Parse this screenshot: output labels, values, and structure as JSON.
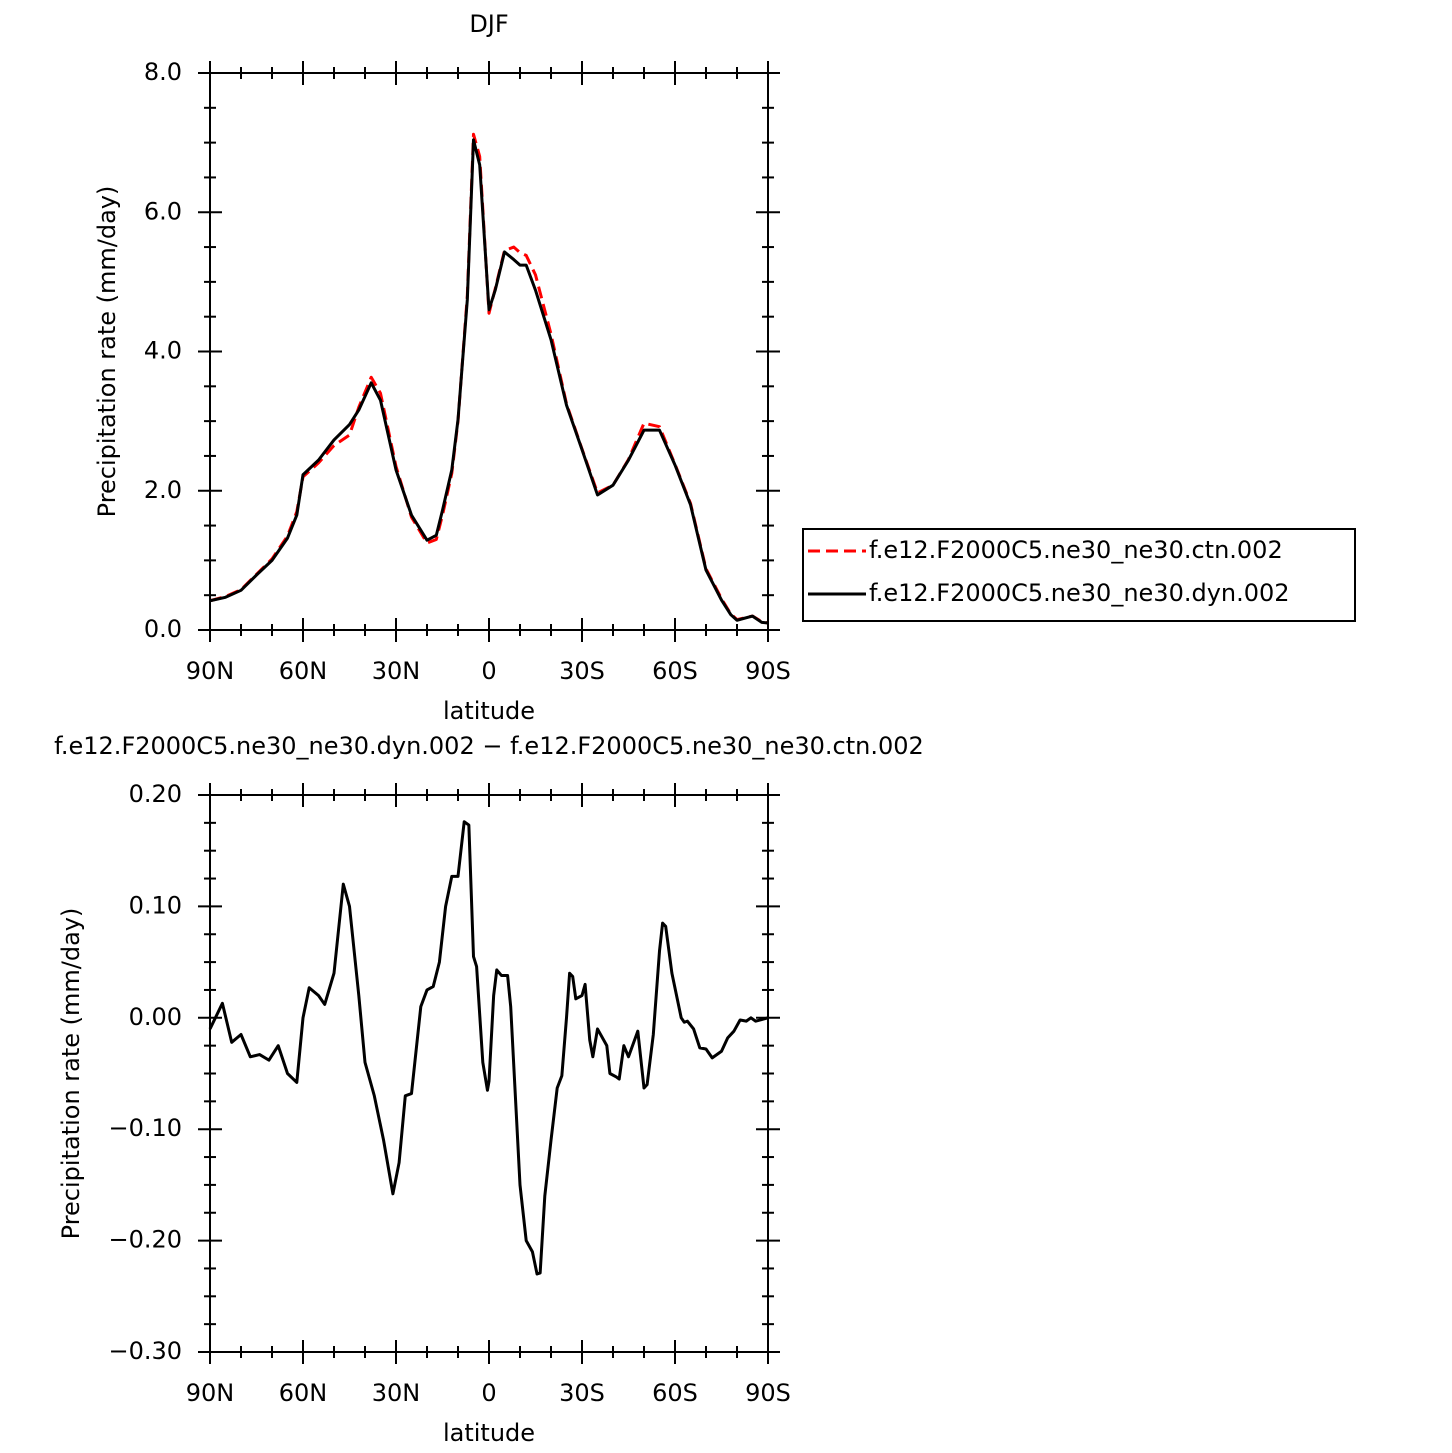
{
  "chart_data": [
    {
      "type": "line",
      "title": "DJF",
      "xlabel": "latitude",
      "ylabel": "Precipitation rate (mm/day)",
      "x": [
        90,
        85,
        80,
        75,
        70,
        65,
        62,
        60,
        55,
        50,
        45,
        42,
        38,
        35,
        30,
        25,
        20,
        17,
        15,
        12,
        10,
        7,
        5,
        3,
        0,
        -2,
        -5,
        -8,
        -10,
        -12,
        -15,
        -20,
        -25,
        -30,
        -35,
        -40,
        -45,
        -50,
        -55,
        -60,
        -65,
        -70,
        -75,
        -78,
        -80,
        -85,
        -88,
        -90
      ],
      "series": [
        {
          "name": "f.e12.F2000C5.ne30_ne30.ctn.002",
          "color": "#ff0000",
          "dashed": true,
          "values": [
            0.42,
            0.48,
            0.58,
            0.8,
            1.02,
            1.35,
            1.7,
            2.2,
            2.4,
            2.65,
            2.8,
            3.2,
            3.63,
            3.4,
            2.35,
            1.62,
            1.25,
            1.3,
            1.65,
            2.25,
            3.0,
            4.8,
            7.12,
            6.8,
            4.55,
            4.9,
            5.45,
            5.5,
            5.42,
            5.38,
            5.1,
            4.25,
            3.25,
            2.6,
            1.97,
            2.08,
            2.45,
            2.97,
            2.92,
            2.38,
            1.82,
            0.88,
            0.45,
            0.23,
            0.15,
            0.2,
            0.12,
            0.1
          ]
        },
        {
          "name": "f.e12.F2000C5.ne30_ne30.dyn.002",
          "color": "#000000",
          "dashed": false,
          "values": [
            0.42,
            0.47,
            0.57,
            0.79,
            1.0,
            1.32,
            1.65,
            2.23,
            2.44,
            2.73,
            2.95,
            3.16,
            3.55,
            3.3,
            2.3,
            1.65,
            1.29,
            1.36,
            1.72,
            2.3,
            3.02,
            4.74,
            7.04,
            6.68,
            4.6,
            4.88,
            5.43,
            5.32,
            5.24,
            5.24,
            4.88,
            4.17,
            3.23,
            2.59,
            1.94,
            2.08,
            2.44,
            2.87,
            2.87,
            2.37,
            1.8,
            0.86,
            0.43,
            0.22,
            0.14,
            0.2,
            0.11,
            0.1
          ]
        }
      ],
      "xlim": [
        90,
        -90
      ],
      "xticks": [
        {
          "value": 90,
          "label": "90N"
        },
        {
          "value": 60,
          "label": "60N"
        },
        {
          "value": 30,
          "label": "30N"
        },
        0,
        {
          "value": -30,
          "label": "30S"
        },
        {
          "value": -60,
          "label": "60S"
        },
        {
          "value": -90,
          "label": "90S"
        }
      ],
      "ylim": [
        0,
        8
      ],
      "yticks": [
        {
          "value": 0,
          "label": "0.0"
        },
        {
          "value": 2,
          "label": "2.0"
        },
        {
          "value": 4,
          "label": "4.0"
        },
        {
          "value": 6,
          "label": "6.0"
        },
        {
          "value": 8,
          "label": "8.0"
        }
      ],
      "legend": "right"
    },
    {
      "type": "line",
      "title": "f.e12.F2000C5.ne30_ne30.dyn.002 − f.e12.F2000C5.ne30_ne30.ctn.002",
      "xlabel": "latitude",
      "ylabel": "Precipitation rate (mm/day)",
      "x": [
        90,
        86,
        83,
        80,
        77,
        74,
        71,
        68,
        65,
        62,
        60,
        58,
        55,
        53,
        50,
        47,
        45,
        42,
        40,
        37,
        34,
        31,
        29,
        27,
        25,
        22,
        20,
        18,
        16,
        14,
        12,
        10,
        8,
        6.5,
        5,
        4,
        2,
        0.5,
        0,
        -1.5,
        -2.5,
        -4,
        -6,
        -7,
        -10,
        -12,
        -14,
        -15.5,
        -16.5,
        -18,
        -20,
        -22,
        -23.5,
        -25,
        -26,
        -27,
        -28,
        -30,
        -31,
        -32.5,
        -33.5,
        -35,
        -38,
        -39,
        -41,
        -42,
        -43.5,
        -45,
        -48,
        -50,
        -51,
        -53,
        -55,
        -56,
        -57,
        -59,
        -62,
        -63,
        -64,
        -66,
        -68,
        -70,
        -72,
        -75,
        -77,
        -79,
        -81,
        -83,
        -84.5,
        -86,
        -90
      ],
      "series": [
        {
          "color": "#000000",
          "dashed": false,
          "values": [
            -0.01,
            0.013,
            -0.022,
            -0.015,
            -0.035,
            -0.033,
            -0.038,
            -0.025,
            -0.05,
            -0.058,
            0.0,
            0.027,
            0.02,
            0.012,
            0.04,
            0.12,
            0.1,
            0.02,
            -0.04,
            -0.07,
            -0.11,
            -0.158,
            -0.13,
            -0.07,
            -0.068,
            0.01,
            0.025,
            0.028,
            0.05,
            0.1,
            0.127,
            0.127,
            0.176,
            0.173,
            0.055,
            0.046,
            -0.04,
            -0.065,
            -0.057,
            0.02,
            0.043,
            0.038,
            0.038,
            0.01,
            -0.15,
            -0.2,
            -0.21,
            -0.23,
            -0.229,
            -0.16,
            -0.11,
            -0.063,
            -0.052,
            0.0,
            0.04,
            0.037,
            0.017,
            0.02,
            0.03,
            -0.02,
            -0.035,
            -0.01,
            -0.025,
            -0.05,
            -0.053,
            -0.055,
            -0.025,
            -0.035,
            -0.012,
            -0.063,
            -0.06,
            -0.015,
            0.06,
            0.085,
            0.082,
            0.04,
            0.0,
            -0.004,
            -0.003,
            -0.01,
            -0.027,
            -0.028,
            -0.036,
            -0.03,
            -0.018,
            -0.012,
            -0.002,
            -0.003,
            0.0,
            -0.003,
            0.0
          ]
        }
      ],
      "xlim": [
        90,
        -90
      ],
      "xticks": [
        {
          "value": 90,
          "label": "90N"
        },
        {
          "value": 60,
          "label": "60N"
        },
        {
          "value": 30,
          "label": "30N"
        },
        0,
        {
          "value": -30,
          "label": "30S"
        },
        {
          "value": -60,
          "label": "60S"
        },
        {
          "value": -90,
          "label": "90S"
        }
      ],
      "ylim": [
        -0.3,
        0.2
      ],
      "yticks": [
        {
          "value": -0.3,
          "label": "−0.30"
        },
        {
          "value": -0.2,
          "label": "−0.20"
        },
        {
          "value": -0.1,
          "label": "−0.10"
        },
        {
          "value": 0,
          "label": "0.00"
        },
        {
          "value": 0.1,
          "label": "0.10"
        },
        {
          "value": 0.2,
          "label": "0.20"
        }
      ]
    }
  ]
}
